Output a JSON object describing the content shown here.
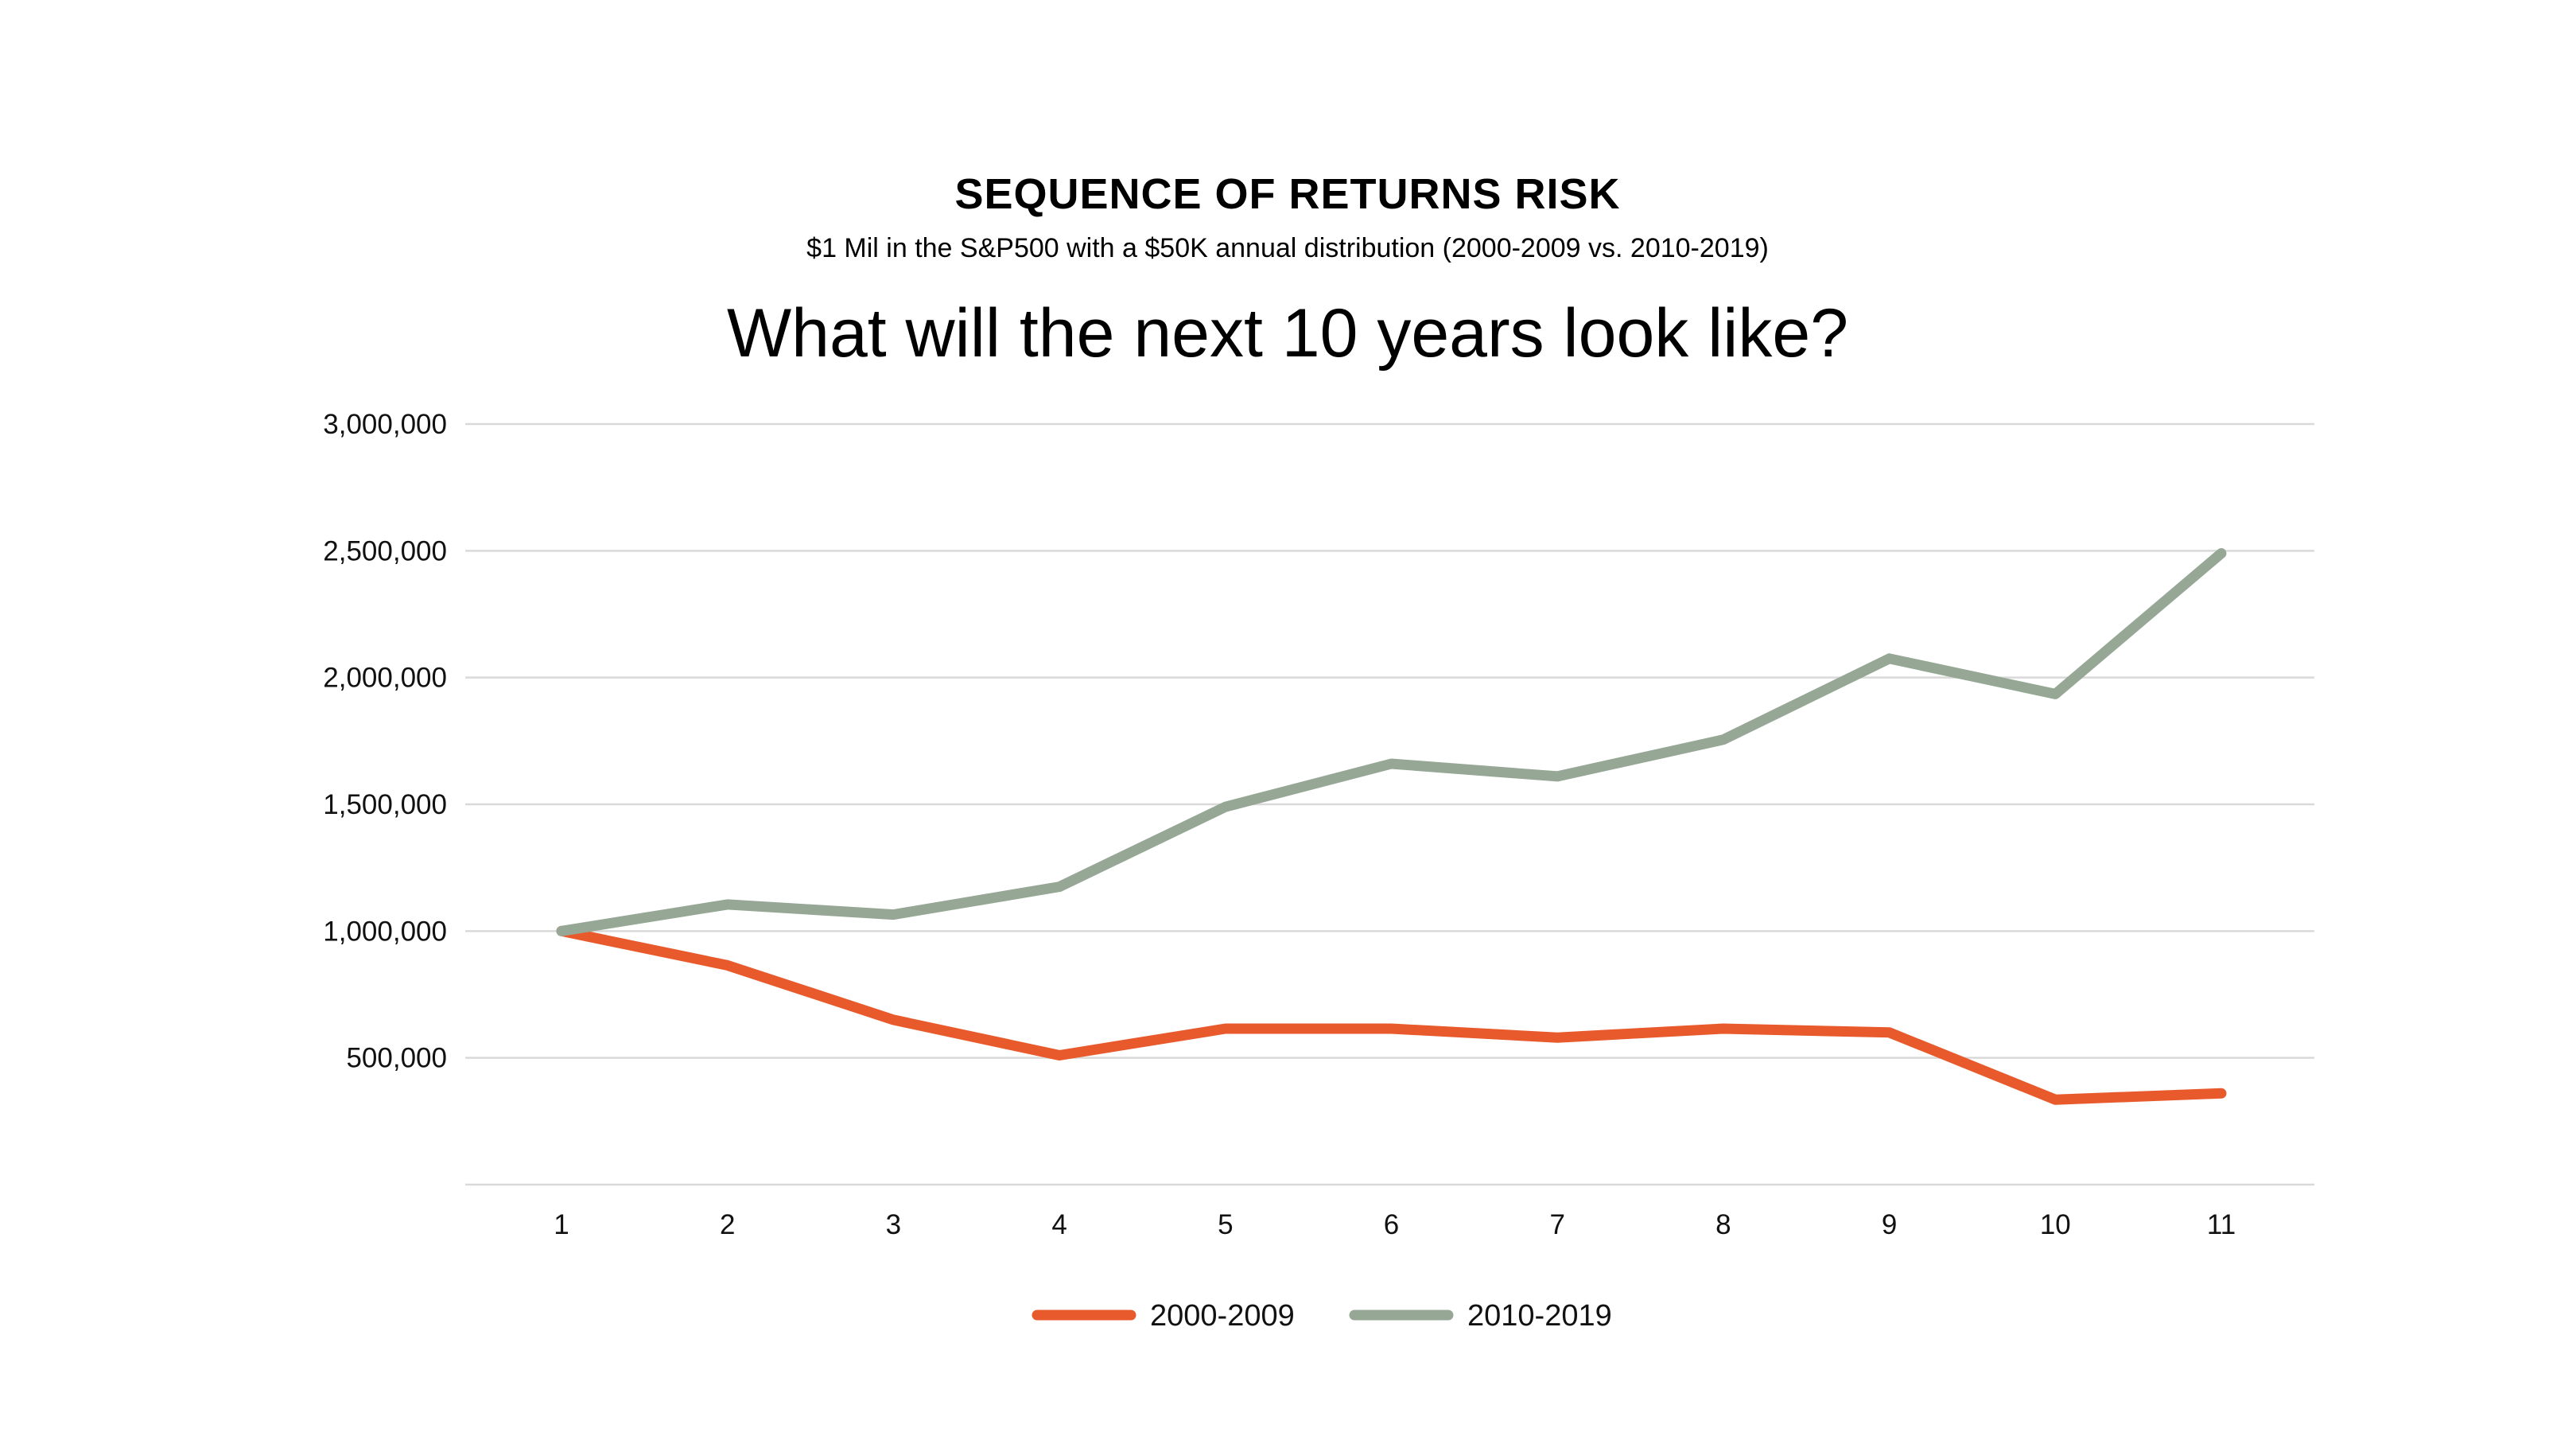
{
  "chart_data": {
    "type": "line",
    "title": "SEQUENCE OF RETURNS RISK",
    "subtitle": "$1 Mil in the S&P500 with a $50K annual distribution (2000-2009 vs. 2010-2019)",
    "headline": "What will the next 10 years look like?",
    "xlabel": "",
    "ylabel": "",
    "categories": [
      "1",
      "2",
      "3",
      "4",
      "5",
      "6",
      "7",
      "8",
      "9",
      "10",
      "11"
    ],
    "y_ticks": [
      {
        "value": 3000000,
        "label": "3,000,000"
      },
      {
        "value": 2500000,
        "label": "2,500,000"
      },
      {
        "value": 2000000,
        "label": "2,000,000"
      },
      {
        "value": 1500000,
        "label": "1,500,000"
      },
      {
        "value": 1000000,
        "label": "1,000,000"
      },
      {
        "value": 500000,
        "label": "500,000"
      }
    ],
    "ylim": [
      0,
      3000000
    ],
    "grid": true,
    "legend_position": "bottom-center",
    "series": [
      {
        "name": "2000-2009",
        "color": "#E85A2C",
        "values": [
          1000000,
          865000,
          650000,
          510000,
          615000,
          615000,
          580000,
          615000,
          600000,
          335000,
          360000
        ]
      },
      {
        "name": "2010-2019",
        "color": "#96A796",
        "values": [
          1000000,
          1105000,
          1065000,
          1175000,
          1490000,
          1660000,
          1610000,
          1755000,
          2075000,
          1935000,
          2490000
        ]
      }
    ],
    "gridline_color": "#D9D9D9"
  }
}
